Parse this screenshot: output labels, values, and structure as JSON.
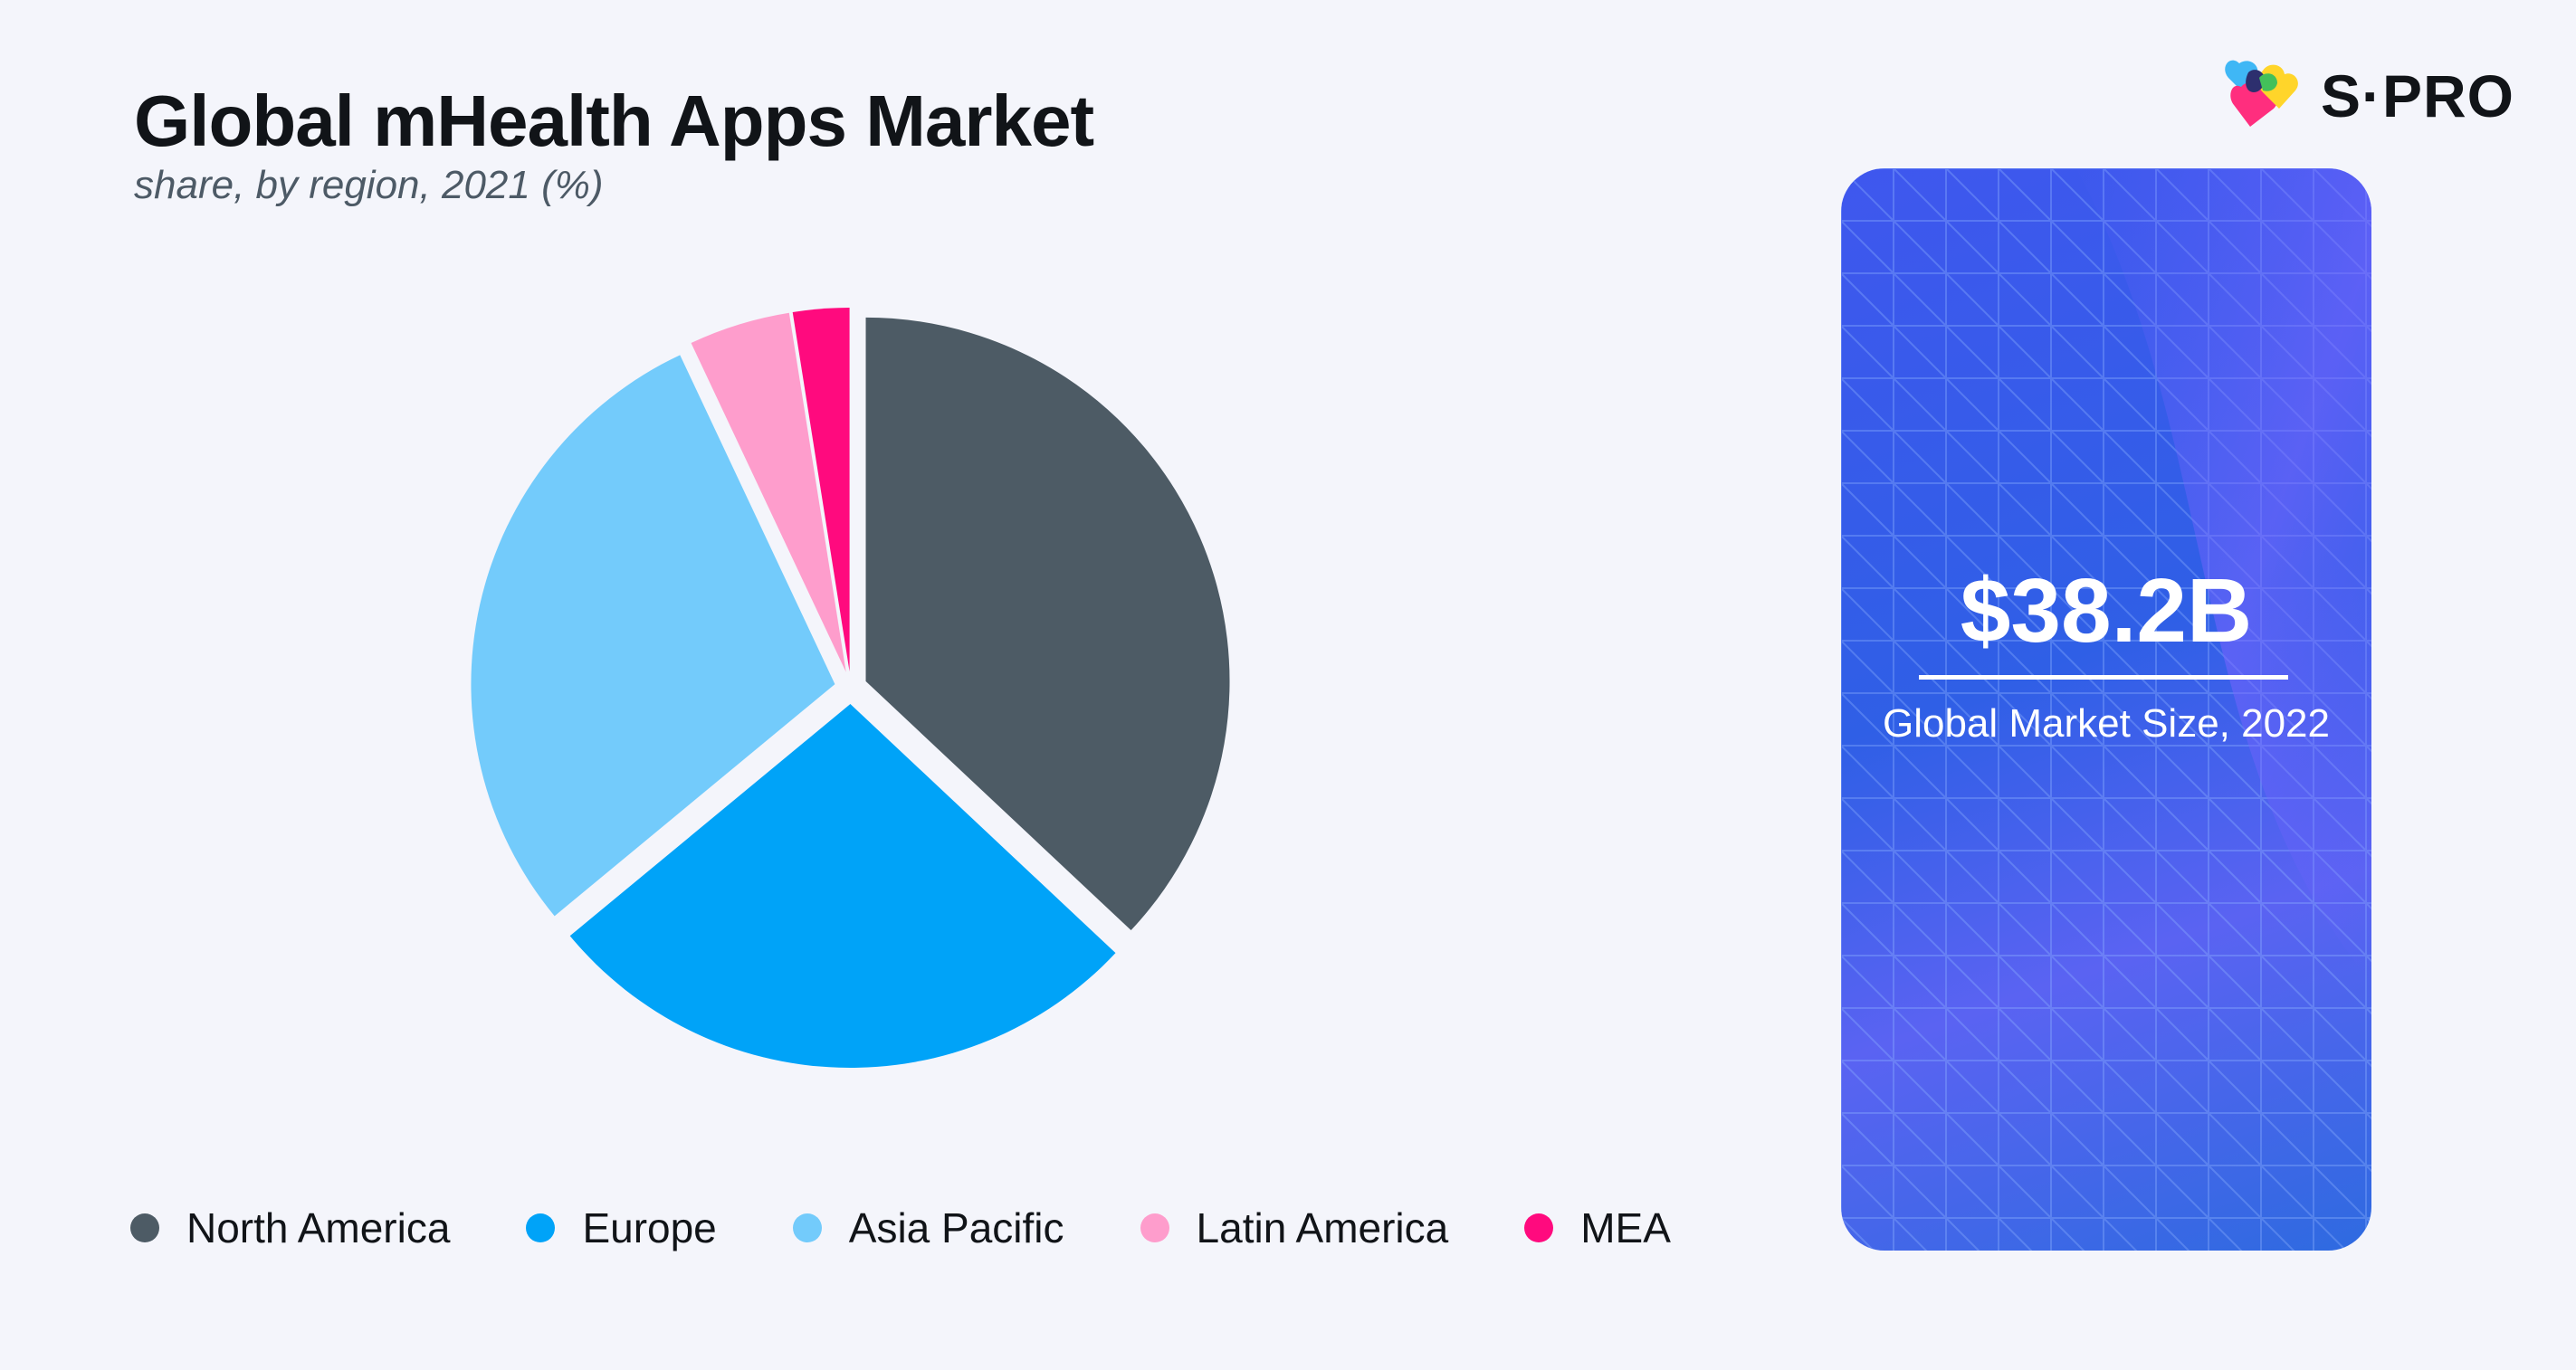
{
  "header": {
    "title": "Global mHealth Apps Market",
    "subtitle": "share, by region, 2021 (%)"
  },
  "logo": {
    "text": "S·PRO",
    "icon": "spro-hearts-logo-icon"
  },
  "chart_data": {
    "type": "pie",
    "title": "Global mHealth Apps Market",
    "subtitle": "share, by region, 2021 (%)",
    "categories": [
      "North America",
      "Europe",
      "Asia Pacific",
      "Latin America",
      "MEA"
    ],
    "values": [
      37.0,
      27.0,
      29.0,
      4.5,
      2.5
    ],
    "colors": [
      "#4d5b65",
      "#00a3f8",
      "#73cbfb",
      "#fe9dcc",
      "#ff0a7e"
    ],
    "legend_position": "bottom",
    "exploded": true
  },
  "callout": {
    "value": "$38.2B",
    "label": "Global Market Size, 2022",
    "background_color": "#3f57ee"
  }
}
